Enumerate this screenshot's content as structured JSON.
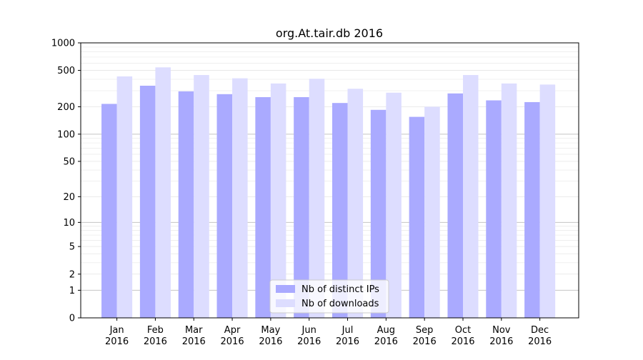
{
  "chart_data": {
    "type": "bar",
    "title": "org.At.tair.db 2016",
    "xlabel": "",
    "ylabel": "",
    "yscale": "log(1+y)",
    "ylim": [
      0,
      1000
    ],
    "yticks": [
      0,
      1,
      2,
      5,
      10,
      20,
      50,
      100,
      200,
      500,
      1000
    ],
    "grid": "horizontal",
    "legend_position": "lower-center",
    "categories": [
      "Jan\n2016",
      "Feb\n2016",
      "Mar\n2016",
      "Apr\n2016",
      "May\n2016",
      "Jun\n2016",
      "Jul\n2016",
      "Aug\n2016",
      "Sep\n2016",
      "Oct\n2016",
      "Nov\n2016",
      "Dec\n2016"
    ],
    "series": [
      {
        "name": "Nb of distinct IPs",
        "color": "#aaaaff",
        "values": [
          215,
          340,
          295,
          275,
          255,
          255,
          220,
          185,
          155,
          280,
          235,
          225
        ]
      },
      {
        "name": "Nb of downloads",
        "color": "#ddddff",
        "values": [
          430,
          540,
          445,
          410,
          360,
          405,
          315,
          285,
          200,
          445,
          360,
          350
        ]
      }
    ]
  }
}
